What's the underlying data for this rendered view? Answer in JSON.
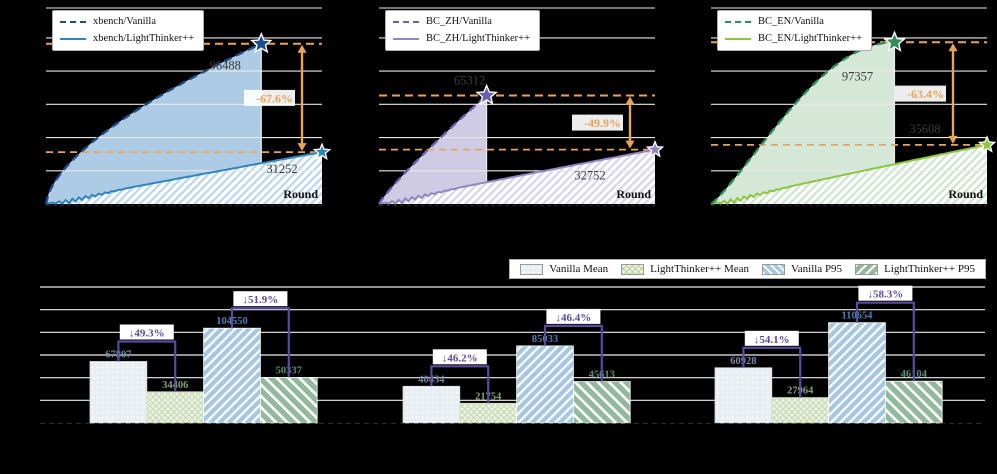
{
  "figure": {
    "background": "#000000"
  },
  "accent": {
    "orange": "#e9a45b",
    "grid": "#e8e8e8",
    "value_label": "#3d3d3d"
  },
  "chart_data": [
    {
      "id": "xbench",
      "type": "area",
      "xlabel": "Round",
      "ylim": [
        0,
        118000
      ],
      "series": [
        {
          "name": "xbench/Vanilla",
          "style": "dashed",
          "end_value": 96488
        },
        {
          "name": "xbench/LightThinker++",
          "style": "solid",
          "end_value": 31252
        }
      ],
      "vanilla_end_frac": 0.78,
      "reduction_annotation": "-67.6%",
      "colors": {
        "vanilla": "#1c4e8d",
        "light": "#2e86c1",
        "fill": "#aecbe5",
        "hatch": "#bcd7ec"
      }
    },
    {
      "id": "BC_ZH",
      "type": "area",
      "xlabel": "Round",
      "ylim": [
        0,
        118000
      ],
      "series": [
        {
          "name": "BC_ZH/Vanilla",
          "style": "dashed",
          "end_value": 65312
        },
        {
          "name": "BC_ZH/LightThinker++",
          "style": "solid",
          "end_value": 32752
        }
      ],
      "vanilla_end_frac": 0.39,
      "reduction_annotation": "-49.9%",
      "colors": {
        "vanilla": "#6c5fab",
        "light": "#9186c0",
        "fill": "#cfcbe4",
        "hatch": "#d8d4ec"
      }
    },
    {
      "id": "BC_EN",
      "type": "area",
      "xlabel": "Round",
      "ylim": [
        0,
        118000
      ],
      "series": [
        {
          "name": "BC_EN/Vanilla",
          "style": "dashed",
          "end_value": 97357
        },
        {
          "name": "BC_EN/LightThinker++",
          "style": "solid",
          "end_value": 35608
        }
      ],
      "vanilla_end_frac": 0.665,
      "reduction_annotation": "-63.4%",
      "colors": {
        "vanilla": "#2f8f5b",
        "light": "#8cc63e",
        "fill": "#d5e7d6",
        "hatch": "#cde4cd"
      }
    },
    {
      "id": "token-bars",
      "type": "bar",
      "categories": [
        "",
        "",
        ""
      ],
      "ylim": [
        0,
        150000
      ],
      "annotation_color": "#5b4a9e",
      "series": [
        {
          "name": "Vanilla Mean",
          "values": [
            67807,
            40434,
            60928
          ],
          "label_color": "#6e8ca6"
        },
        {
          "name": "LightThinker++ Mean",
          "values": [
            34406,
            21754,
            27964
          ],
          "label_color": "#85a178"
        },
        {
          "name": "Vanilla P95",
          "values": [
            104550,
            85033,
            110654
          ],
          "label_color": "#4e7fae"
        },
        {
          "name": "LightThinker++ P95",
          "values": [
            50337,
            45613,
            46104
          ],
          "label_color": "#569178"
        }
      ],
      "reduction_annotations": {
        "mean": [
          "↓49.3%",
          "↓46.2%",
          "↓54.1%"
        ],
        "p95": [
          "↓51.9%",
          "↓46.4%",
          "↓58.3%"
        ]
      }
    }
  ]
}
